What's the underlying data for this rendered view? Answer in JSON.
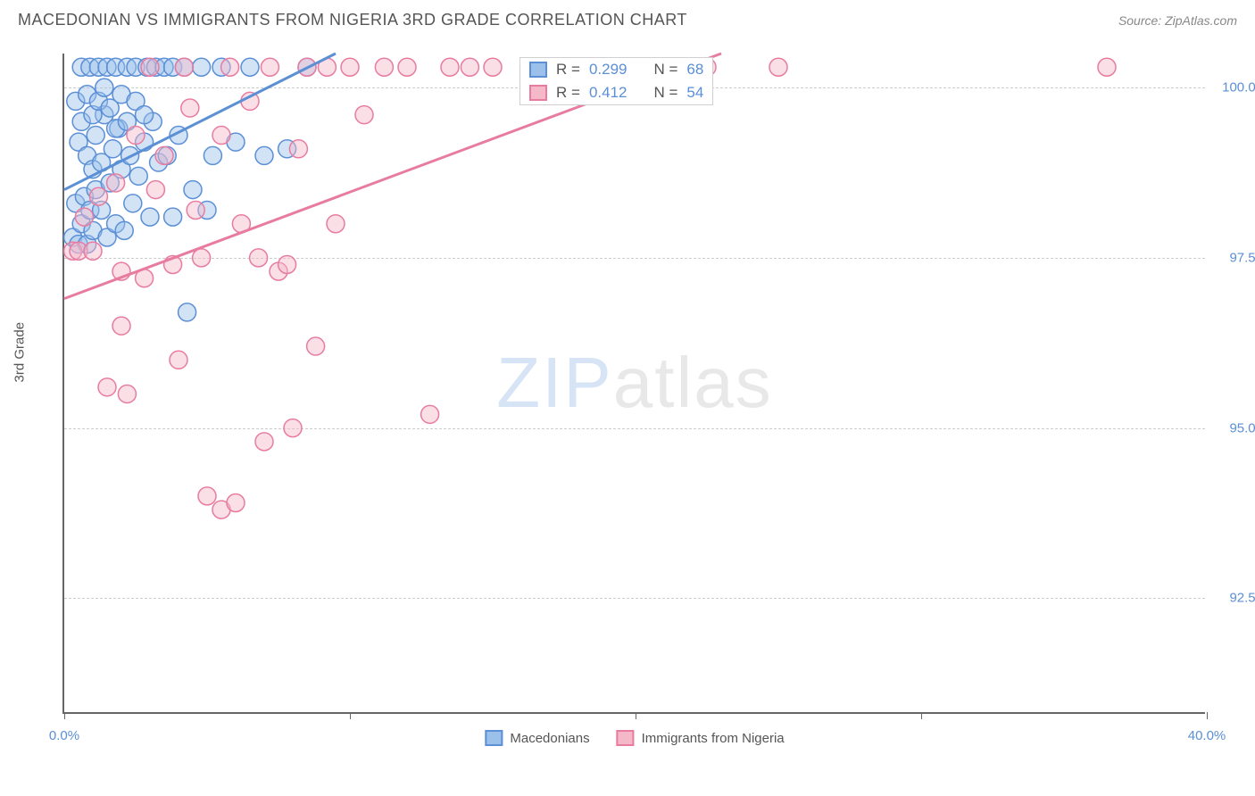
{
  "header": {
    "title": "MACEDONIAN VS IMMIGRANTS FROM NIGERIA 3RD GRADE CORRELATION CHART",
    "source_prefix": "Source: ",
    "source_name": "ZipAtlas.com"
  },
  "chart": {
    "type": "scatter",
    "ylabel": "3rd Grade",
    "xlim": [
      0,
      40
    ],
    "ylim": [
      90.8,
      100.5
    ],
    "xticks": [
      0,
      10,
      20,
      30,
      40
    ],
    "xtick_labels": {
      "0": "0.0%",
      "40": "40.0%"
    },
    "yticks": [
      92.5,
      95.0,
      97.5,
      100.0
    ],
    "ytick_labels": [
      "92.5%",
      "95.0%",
      "97.5%",
      "100.0%"
    ],
    "grid_color": "#cccccc",
    "axis_color": "#666666",
    "background_color": "#ffffff",
    "marker_radius": 10,
    "marker_opacity": 0.45,
    "line_width": 3,
    "watermark": {
      "part1": "ZIP",
      "part2": "atlas"
    },
    "series": [
      {
        "name": "Macedonians",
        "color_fill": "#9bc0ea",
        "color_stroke": "#5b8fd6",
        "R": "0.299",
        "N": "68",
        "trend": {
          "x1": 0,
          "y1": 98.5,
          "x2": 9.5,
          "y2": 100.5
        },
        "points": [
          [
            0.3,
            97.8
          ],
          [
            0.4,
            98.3
          ],
          [
            0.5,
            97.7
          ],
          [
            0.5,
            99.2
          ],
          [
            0.6,
            98.0
          ],
          [
            0.6,
            100.3
          ],
          [
            0.7,
            98.4
          ],
          [
            0.8,
            97.7
          ],
          [
            0.8,
            99.0
          ],
          [
            0.9,
            98.2
          ],
          [
            0.9,
            100.3
          ],
          [
            1.0,
            97.9
          ],
          [
            1.0,
            98.8
          ],
          [
            1.1,
            98.5
          ],
          [
            1.1,
            99.3
          ],
          [
            1.2,
            100.3
          ],
          [
            1.3,
            98.2
          ],
          [
            1.3,
            98.9
          ],
          [
            1.4,
            99.6
          ],
          [
            1.5,
            97.8
          ],
          [
            1.5,
            100.3
          ],
          [
            1.6,
            98.6
          ],
          [
            1.7,
            99.1
          ],
          [
            1.8,
            98.0
          ],
          [
            1.8,
            100.3
          ],
          [
            1.9,
            99.4
          ],
          [
            2.0,
            98.8
          ],
          [
            2.1,
            97.9
          ],
          [
            2.2,
            100.3
          ],
          [
            2.3,
            99.0
          ],
          [
            2.4,
            98.3
          ],
          [
            2.5,
            100.3
          ],
          [
            2.6,
            98.7
          ],
          [
            2.8,
            99.2
          ],
          [
            2.9,
            100.3
          ],
          [
            3.0,
            98.1
          ],
          [
            3.1,
            99.5
          ],
          [
            3.2,
            100.3
          ],
          [
            3.3,
            98.9
          ],
          [
            3.5,
            100.3
          ],
          [
            3.6,
            99.0
          ],
          [
            3.8,
            98.1
          ],
          [
            3.8,
            100.3
          ],
          [
            4.0,
            99.3
          ],
          [
            4.2,
            100.3
          ],
          [
            4.3,
            96.7
          ],
          [
            4.5,
            98.5
          ],
          [
            4.8,
            100.3
          ],
          [
            5.0,
            98.2
          ],
          [
            5.2,
            99.0
          ],
          [
            5.5,
            100.3
          ],
          [
            6.0,
            99.2
          ],
          [
            6.5,
            100.3
          ],
          [
            7.0,
            99.0
          ],
          [
            7.8,
            99.1
          ],
          [
            8.5,
            100.3
          ],
          [
            0.4,
            99.8
          ],
          [
            0.6,
            99.5
          ],
          [
            0.8,
            99.9
          ],
          [
            1.0,
            99.6
          ],
          [
            1.2,
            99.8
          ],
          [
            1.4,
            100.0
          ],
          [
            1.6,
            99.7
          ],
          [
            1.8,
            99.4
          ],
          [
            2.0,
            99.9
          ],
          [
            2.2,
            99.5
          ],
          [
            2.5,
            99.8
          ],
          [
            2.8,
            99.6
          ]
        ]
      },
      {
        "name": "Immigrants from Nigeria",
        "color_fill": "#f5b8c9",
        "color_stroke": "#e87ca0",
        "R": "0.412",
        "N": "54",
        "trend": {
          "x1": 0,
          "y1": 96.9,
          "x2": 23,
          "y2": 100.5
        },
        "points": [
          [
            0.3,
            97.6
          ],
          [
            0.5,
            97.6
          ],
          [
            0.7,
            98.1
          ],
          [
            1.0,
            97.6
          ],
          [
            1.2,
            98.4
          ],
          [
            1.5,
            95.6
          ],
          [
            1.8,
            98.6
          ],
          [
            2.0,
            97.3
          ],
          [
            2.2,
            95.5
          ],
          [
            2.5,
            99.3
          ],
          [
            2.8,
            97.2
          ],
          [
            3.0,
            100.3
          ],
          [
            3.2,
            98.5
          ],
          [
            3.5,
            99.0
          ],
          [
            3.8,
            97.4
          ],
          [
            4.0,
            96.0
          ],
          [
            4.2,
            100.3
          ],
          [
            4.4,
            99.7
          ],
          [
            4.6,
            98.2
          ],
          [
            4.8,
            97.5
          ],
          [
            5.0,
            94.0
          ],
          [
            5.5,
            93.8
          ],
          [
            5.5,
            99.3
          ],
          [
            5.8,
            100.3
          ],
          [
            6.0,
            93.9
          ],
          [
            6.2,
            98.0
          ],
          [
            6.5,
            99.8
          ],
          [
            6.8,
            97.5
          ],
          [
            7.0,
            94.8
          ],
          [
            7.2,
            100.3
          ],
          [
            7.5,
            97.3
          ],
          [
            7.8,
            97.4
          ],
          [
            8.0,
            95.0
          ],
          [
            8.2,
            99.1
          ],
          [
            8.5,
            100.3
          ],
          [
            8.8,
            96.2
          ],
          [
            9.2,
            100.3
          ],
          [
            9.5,
            98.0
          ],
          [
            10.0,
            100.3
          ],
          [
            10.5,
            99.6
          ],
          [
            11.2,
            100.3
          ],
          [
            12.0,
            100.3
          ],
          [
            12.8,
            95.2
          ],
          [
            13.5,
            100.3
          ],
          [
            14.2,
            100.3
          ],
          [
            15.0,
            100.3
          ],
          [
            16.5,
            100.3
          ],
          [
            18.0,
            100.3
          ],
          [
            19.5,
            100.3
          ],
          [
            21.0,
            100.3
          ],
          [
            22.5,
            100.3
          ],
          [
            25.0,
            100.3
          ],
          [
            36.5,
            100.3
          ],
          [
            2.0,
            96.5
          ]
        ]
      }
    ],
    "stats_labels": {
      "R": "R =",
      "N": "N ="
    }
  }
}
